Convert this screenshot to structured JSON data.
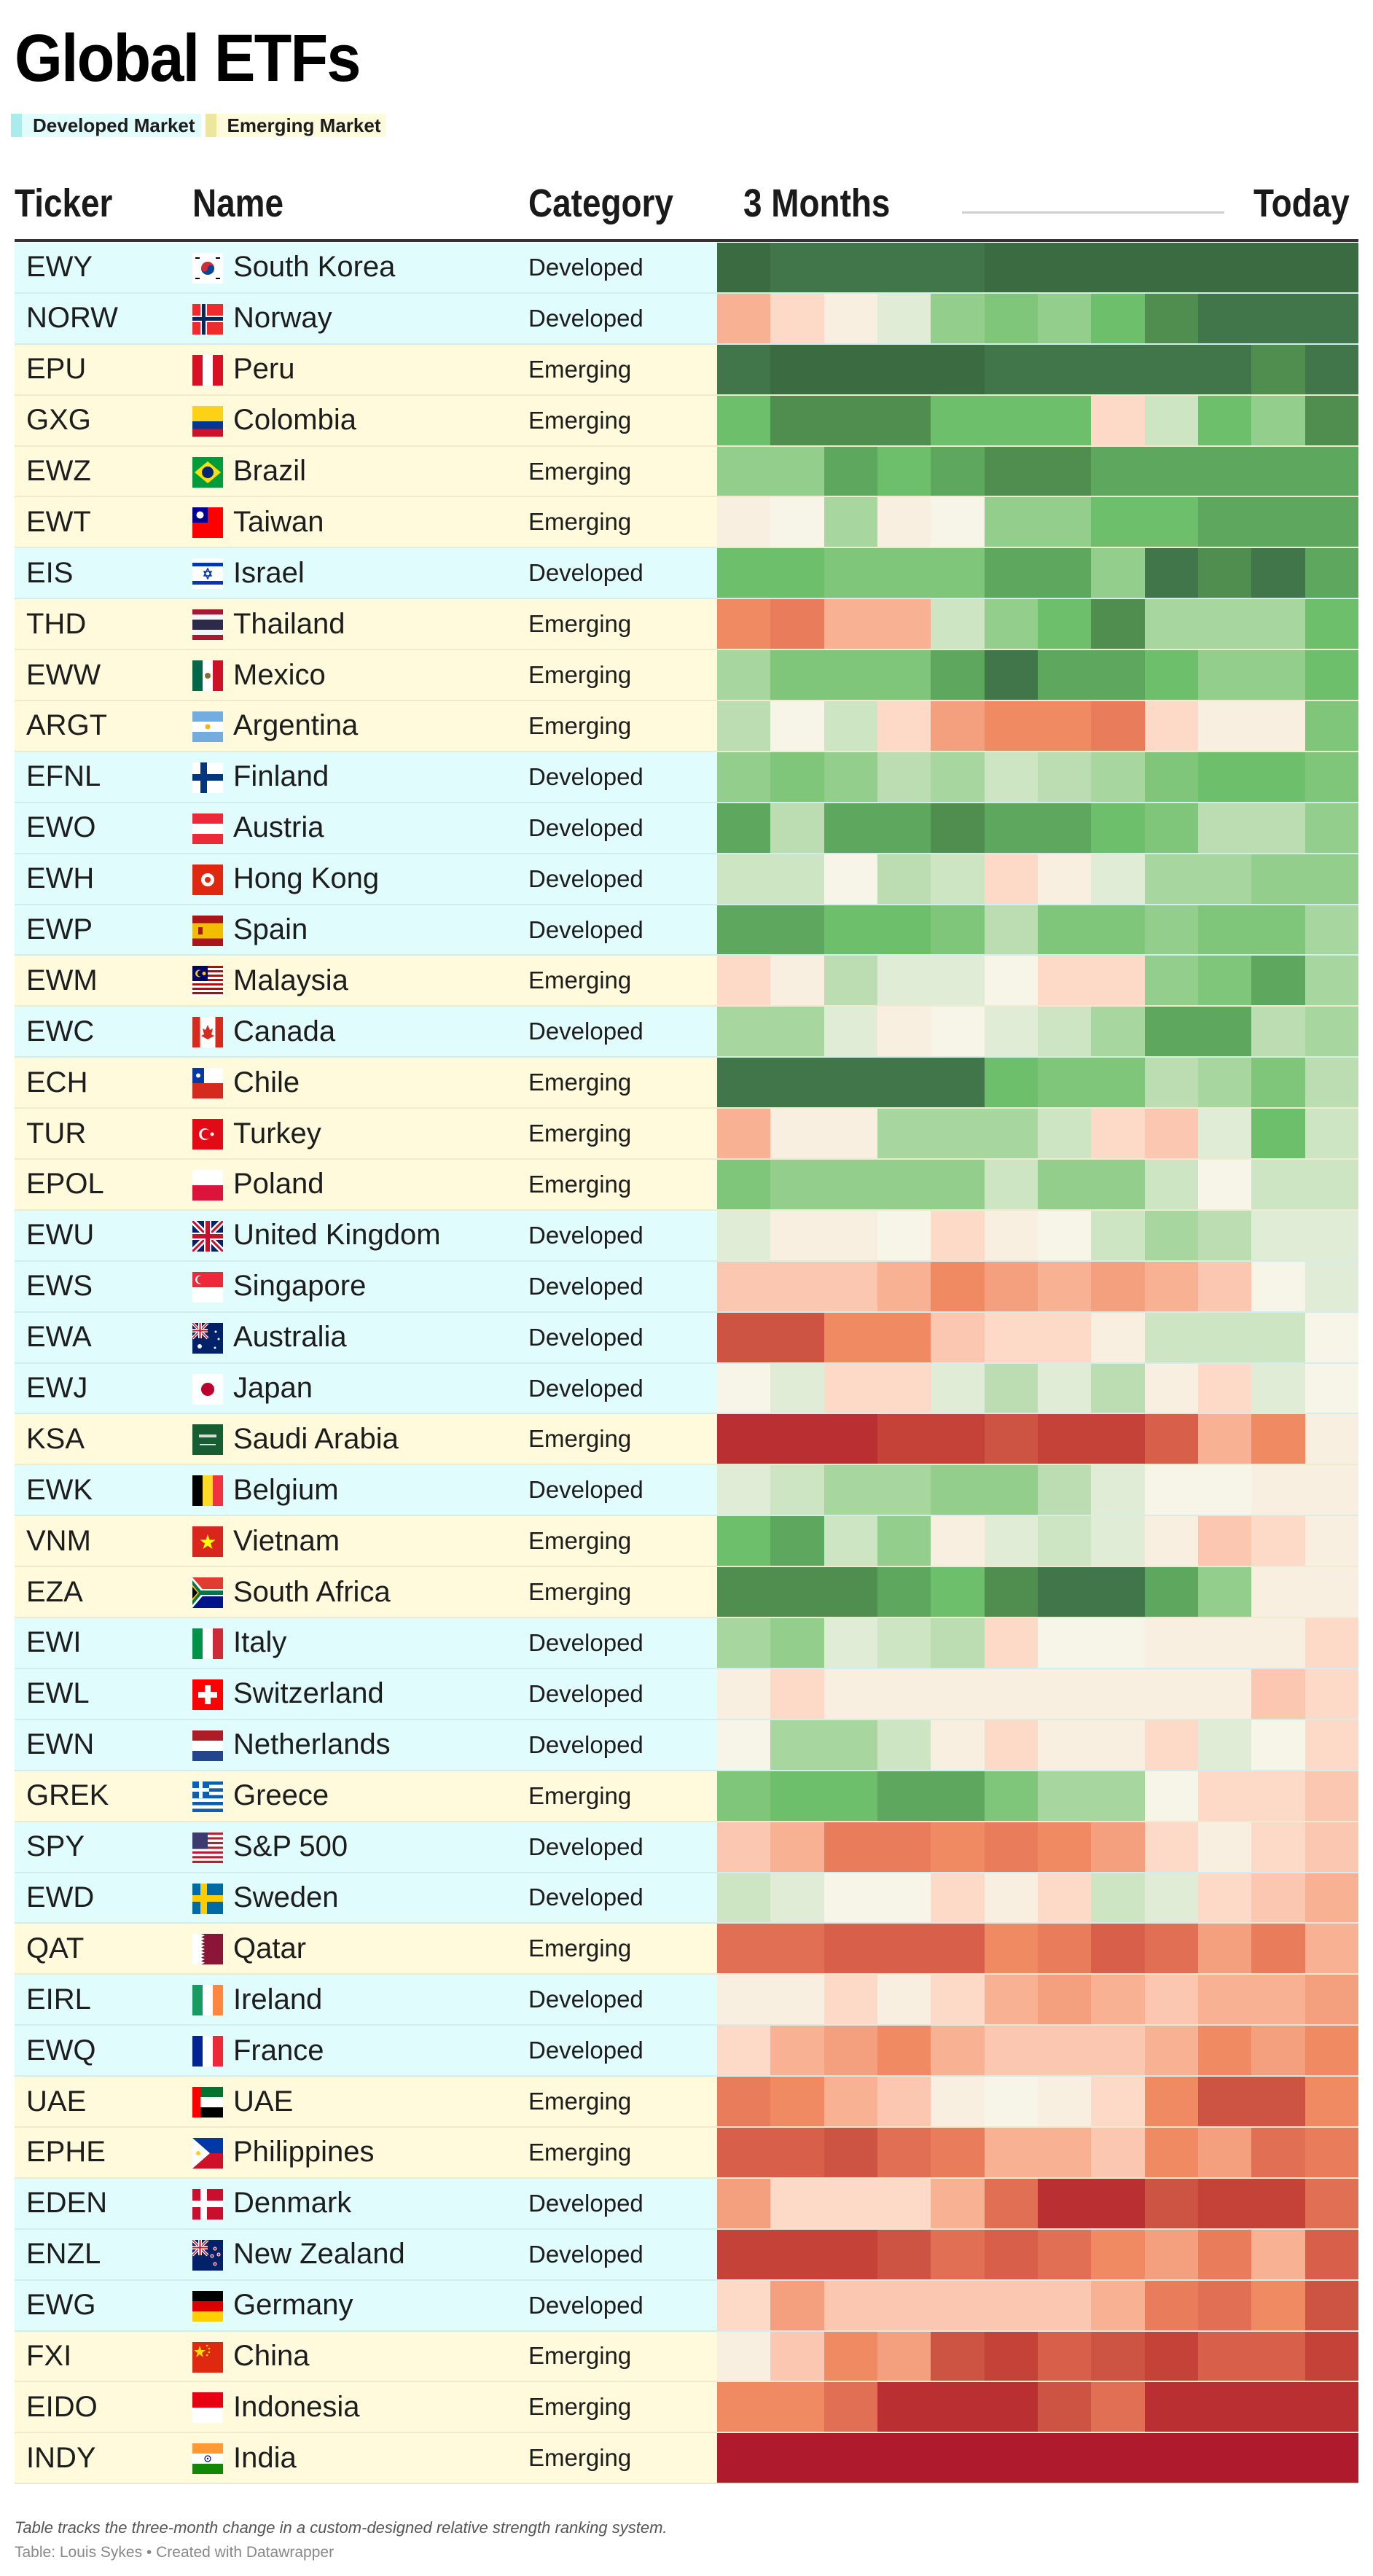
{
  "title": "Global ETFs",
  "legend": [
    {
      "label": "Developed Market",
      "color": "#a9ecec"
    },
    {
      "label": "Emerging Market",
      "color": "#ece69e"
    }
  ],
  "header": {
    "ticker": "Ticker",
    "name": "Name",
    "category": "Category",
    "start": "3 Months",
    "end": "Today"
  },
  "footer": {
    "note": "Table tracks the three-month change in a custom-designed relative strength ranking system.",
    "source": "Table: Louis Sykes • Created with Datawrapper"
  },
  "colors": {
    "developed_bg": "#e0fcfc",
    "emerging_bg": "#fefadb"
  },
  "chart_data": {
    "type": "heatmap",
    "title": "Global ETFs",
    "xlabel": "3 Months → Today",
    "periods": 12,
    "scale": {
      "min": -12,
      "max": 12,
      "note": "negative = weaker relative strength (red), positive = stronger (green)"
    },
    "palette": [
      "#af1a2c",
      "#b92f32",
      "#c44238",
      "#cd5342",
      "#d8604a",
      "#e06f53",
      "#e87c5b",
      "#f08a63",
      "#f49f7d",
      "#f8b193",
      "#fbc7b0",
      "#fddac7",
      "#f9efe1",
      "#f6f5e8",
      "#e0ecd6",
      "#cde5c3",
      "#bbddb1",
      "#a8d69f",
      "#94ce8c",
      "#80c67a",
      "#6dbf6b",
      "#5ea75e",
      "#4f8e4f",
      "#41764a",
      "#3a6b41"
    ],
    "rows": [
      {
        "ticker": "EWY",
        "name": "South Korea",
        "category": "Developed",
        "flag": "kr",
        "values": [
          12,
          11,
          11,
          11,
          11,
          12,
          12,
          12,
          12,
          12,
          12,
          12
        ]
      },
      {
        "ticker": "NORW",
        "name": "Norway",
        "category": "Developed",
        "flag": "no",
        "values": [
          -3,
          -1,
          0,
          2,
          6,
          7,
          6,
          8,
          10,
          11,
          11,
          11
        ]
      },
      {
        "ticker": "EPU",
        "name": "Peru",
        "category": "Emerging",
        "flag": "pe",
        "values": [
          11,
          12,
          12,
          12,
          12,
          11,
          11,
          11,
          11,
          11,
          10,
          11
        ]
      },
      {
        "ticker": "GXG",
        "name": "Colombia",
        "category": "Emerging",
        "flag": "co",
        "values": [
          8,
          10,
          10,
          10,
          8,
          8,
          8,
          -1,
          3,
          8,
          6,
          10
        ]
      },
      {
        "ticker": "EWZ",
        "name": "Brazil",
        "category": "Emerging",
        "flag": "br",
        "values": [
          6,
          6,
          9,
          8,
          9,
          10,
          10,
          9,
          9,
          9,
          9,
          9
        ]
      },
      {
        "ticker": "EWT",
        "name": "Taiwan",
        "category": "Emerging",
        "flag": "tw",
        "values": [
          0,
          1,
          5,
          0,
          1,
          6,
          6,
          8,
          8,
          9,
          9,
          9
        ]
      },
      {
        "ticker": "EIS",
        "name": "Israel",
        "category": "Developed",
        "flag": "il",
        "values": [
          8,
          8,
          7,
          7,
          7,
          9,
          9,
          6,
          11,
          10,
          11,
          9
        ]
      },
      {
        "ticker": "THD",
        "name": "Thailand",
        "category": "Emerging",
        "flag": "th",
        "values": [
          -5,
          -6,
          -3,
          -3,
          3,
          6,
          8,
          10,
          5,
          5,
          5,
          8
        ]
      },
      {
        "ticker": "EWW",
        "name": "Mexico",
        "category": "Emerging",
        "flag": "mx",
        "values": [
          5,
          7,
          7,
          7,
          9,
          11,
          9,
          9,
          8,
          6,
          6,
          8
        ]
      },
      {
        "ticker": "ARGT",
        "name": "Argentina",
        "category": "Emerging",
        "flag": "ar",
        "values": [
          4,
          1,
          3,
          -1,
          -4,
          -5,
          -5,
          -6,
          -1,
          0,
          0,
          7
        ]
      },
      {
        "ticker": "EFNL",
        "name": "Finland",
        "category": "Developed",
        "flag": "fi",
        "values": [
          6,
          7,
          6,
          4,
          5,
          3,
          4,
          5,
          7,
          8,
          8,
          7
        ]
      },
      {
        "ticker": "EWO",
        "name": "Austria",
        "category": "Developed",
        "flag": "at",
        "values": [
          9,
          4,
          9,
          9,
          10,
          9,
          9,
          8,
          7,
          4,
          4,
          6
        ]
      },
      {
        "ticker": "EWH",
        "name": "Hong Kong",
        "category": "Developed",
        "flag": "hk",
        "values": [
          3,
          3,
          1,
          4,
          3,
          -1,
          0,
          2,
          5,
          5,
          6,
          6
        ]
      },
      {
        "ticker": "EWP",
        "name": "Spain",
        "category": "Developed",
        "flag": "es",
        "values": [
          9,
          9,
          8,
          8,
          7,
          4,
          7,
          7,
          6,
          7,
          7,
          5
        ]
      },
      {
        "ticker": "EWM",
        "name": "Malaysia",
        "category": "Emerging",
        "flag": "my",
        "values": [
          -1,
          0,
          4,
          2,
          2,
          1,
          -1,
          -1,
          6,
          7,
          9,
          5
        ]
      },
      {
        "ticker": "EWC",
        "name": "Canada",
        "category": "Developed",
        "flag": "ca",
        "values": [
          5,
          5,
          2,
          0,
          1,
          2,
          3,
          5,
          9,
          9,
          4,
          5
        ]
      },
      {
        "ticker": "ECH",
        "name": "Chile",
        "category": "Emerging",
        "flag": "cl",
        "values": [
          11,
          11,
          11,
          11,
          11,
          8,
          7,
          7,
          4,
          5,
          7,
          4
        ]
      },
      {
        "ticker": "TUR",
        "name": "Turkey",
        "category": "Emerging",
        "flag": "tr",
        "values": [
          -3,
          0,
          0,
          5,
          5,
          5,
          3,
          -1,
          -2,
          2,
          8,
          3
        ]
      },
      {
        "ticker": "EPOL",
        "name": "Poland",
        "category": "Emerging",
        "flag": "pl",
        "values": [
          7,
          6,
          6,
          6,
          6,
          3,
          6,
          6,
          3,
          1,
          3,
          3
        ]
      },
      {
        "ticker": "EWU",
        "name": "United Kingdom",
        "category": "Developed",
        "flag": "gb",
        "values": [
          2,
          0,
          0,
          1,
          -1,
          0,
          1,
          3,
          5,
          4,
          2,
          2
        ]
      },
      {
        "ticker": "EWS",
        "name": "Singapore",
        "category": "Developed",
        "flag": "sg",
        "values": [
          -2,
          -2,
          -2,
          -3,
          -5,
          -4,
          -3,
          -4,
          -3,
          -2,
          1,
          2
        ]
      },
      {
        "ticker": "EWA",
        "name": "Australia",
        "category": "Developed",
        "flag": "au",
        "values": [
          -9,
          -9,
          -5,
          -5,
          -2,
          -1,
          -1,
          0,
          3,
          3,
          3,
          1
        ]
      },
      {
        "ticker": "EWJ",
        "name": "Japan",
        "category": "Developed",
        "flag": "jp",
        "values": [
          1,
          2,
          -1,
          -1,
          2,
          4,
          2,
          4,
          0,
          -1,
          2,
          1
        ]
      },
      {
        "ticker": "KSA",
        "name": "Saudi Arabia",
        "category": "Emerging",
        "flag": "sa",
        "values": [
          -11,
          -11,
          -11,
          -10,
          -10,
          -9,
          -10,
          -10,
          -8,
          -3,
          -5,
          0
        ]
      },
      {
        "ticker": "EWK",
        "name": "Belgium",
        "category": "Developed",
        "flag": "be",
        "values": [
          2,
          3,
          5,
          5,
          6,
          6,
          4,
          2,
          1,
          1,
          0,
          0
        ]
      },
      {
        "ticker": "VNM",
        "name": "Vietnam",
        "category": "Emerging",
        "flag": "vn",
        "values": [
          8,
          9,
          3,
          6,
          0,
          2,
          3,
          2,
          0,
          -2,
          -1,
          0
        ]
      },
      {
        "ticker": "EZA",
        "name": "South Africa",
        "category": "Emerging",
        "flag": "za",
        "values": [
          10,
          10,
          10,
          9,
          8,
          10,
          11,
          11,
          9,
          6,
          0,
          0
        ]
      },
      {
        "ticker": "EWI",
        "name": "Italy",
        "category": "Developed",
        "flag": "it",
        "values": [
          5,
          6,
          2,
          3,
          4,
          -1,
          1,
          1,
          0,
          0,
          0,
          -1
        ]
      },
      {
        "ticker": "EWL",
        "name": "Switzerland",
        "category": "Developed",
        "flag": "ch",
        "values": [
          0,
          -1,
          0,
          0,
          0,
          0,
          0,
          0,
          0,
          0,
          -2,
          -1
        ]
      },
      {
        "ticker": "EWN",
        "name": "Netherlands",
        "category": "Developed",
        "flag": "nl",
        "values": [
          1,
          5,
          5,
          3,
          0,
          -1,
          0,
          0,
          -1,
          2,
          1,
          -1
        ]
      },
      {
        "ticker": "GREK",
        "name": "Greece",
        "category": "Emerging",
        "flag": "gr",
        "values": [
          7,
          8,
          8,
          9,
          9,
          7,
          5,
          5,
          1,
          -1,
          -1,
          -2
        ]
      },
      {
        "ticker": "SPY",
        "name": "S&P 500",
        "category": "Developed",
        "flag": "us",
        "values": [
          -2,
          -3,
          -6,
          -6,
          -5,
          -6,
          -5,
          -4,
          -1,
          0,
          -1,
          -2
        ]
      },
      {
        "ticker": "EWD",
        "name": "Sweden",
        "category": "Developed",
        "flag": "se",
        "values": [
          3,
          2,
          1,
          1,
          -1,
          0,
          -1,
          3,
          2,
          -1,
          -2,
          -3
        ]
      },
      {
        "ticker": "QAT",
        "name": "Qatar",
        "category": "Emerging",
        "flag": "qa",
        "values": [
          -7,
          -7,
          -8,
          -8,
          -8,
          -5,
          -6,
          -8,
          -7,
          -4,
          -6,
          -3
        ]
      },
      {
        "ticker": "EIRL",
        "name": "Ireland",
        "category": "Developed",
        "flag": "ie",
        "values": [
          0,
          0,
          -1,
          0,
          -1,
          -3,
          -4,
          -3,
          -2,
          -3,
          -3,
          -4
        ]
      },
      {
        "ticker": "EWQ",
        "name": "France",
        "category": "Developed",
        "flag": "fr",
        "values": [
          -1,
          -3,
          -4,
          -5,
          -3,
          -2,
          -2,
          -2,
          -3,
          -5,
          -4,
          -5
        ]
      },
      {
        "ticker": "UAE",
        "name": "UAE",
        "category": "Emerging",
        "flag": "ae",
        "values": [
          -6,
          -5,
          -3,
          -2,
          0,
          1,
          0,
          -1,
          -5,
          -9,
          -9,
          -5
        ]
      },
      {
        "ticker": "EPHE",
        "name": "Philippines",
        "category": "Emerging",
        "flag": "ph",
        "values": [
          -8,
          -8,
          -9,
          -7,
          -6,
          -3,
          -3,
          -2,
          -5,
          -4,
          -7,
          -6
        ]
      },
      {
        "ticker": "EDEN",
        "name": "Denmark",
        "category": "Developed",
        "flag": "dk",
        "values": [
          -4,
          -1,
          -1,
          -1,
          -3,
          -7,
          -11,
          -11,
          -9,
          -10,
          -10,
          -7
        ]
      },
      {
        "ticker": "ENZL",
        "name": "New Zealand",
        "category": "Developed",
        "flag": "nz",
        "values": [
          -10,
          -10,
          -10,
          -9,
          -7,
          -8,
          -7,
          -5,
          -4,
          -6,
          -3,
          -8
        ]
      },
      {
        "ticker": "EWG",
        "name": "Germany",
        "category": "Developed",
        "flag": "de",
        "values": [
          -1,
          -4,
          -2,
          -2,
          -2,
          -2,
          -2,
          -3,
          -6,
          -7,
          -5,
          -9
        ]
      },
      {
        "ticker": "FXI",
        "name": "China",
        "category": "Emerging",
        "flag": "cn",
        "values": [
          0,
          -2,
          -5,
          -4,
          -9,
          -10,
          -8,
          -9,
          -10,
          -8,
          -8,
          -10
        ]
      },
      {
        "ticker": "EIDO",
        "name": "Indonesia",
        "category": "Emerging",
        "flag": "id",
        "values": [
          -5,
          -5,
          -7,
          -11,
          -11,
          -11,
          -9,
          -7,
          -11,
          -11,
          -11,
          -11
        ]
      },
      {
        "ticker": "INDY",
        "name": "India",
        "category": "Emerging",
        "flag": "in",
        "values": [
          -12,
          -12,
          -12,
          -12,
          -12,
          -12,
          -12,
          -12,
          -12,
          -12,
          -12,
          -12
        ]
      }
    ]
  }
}
